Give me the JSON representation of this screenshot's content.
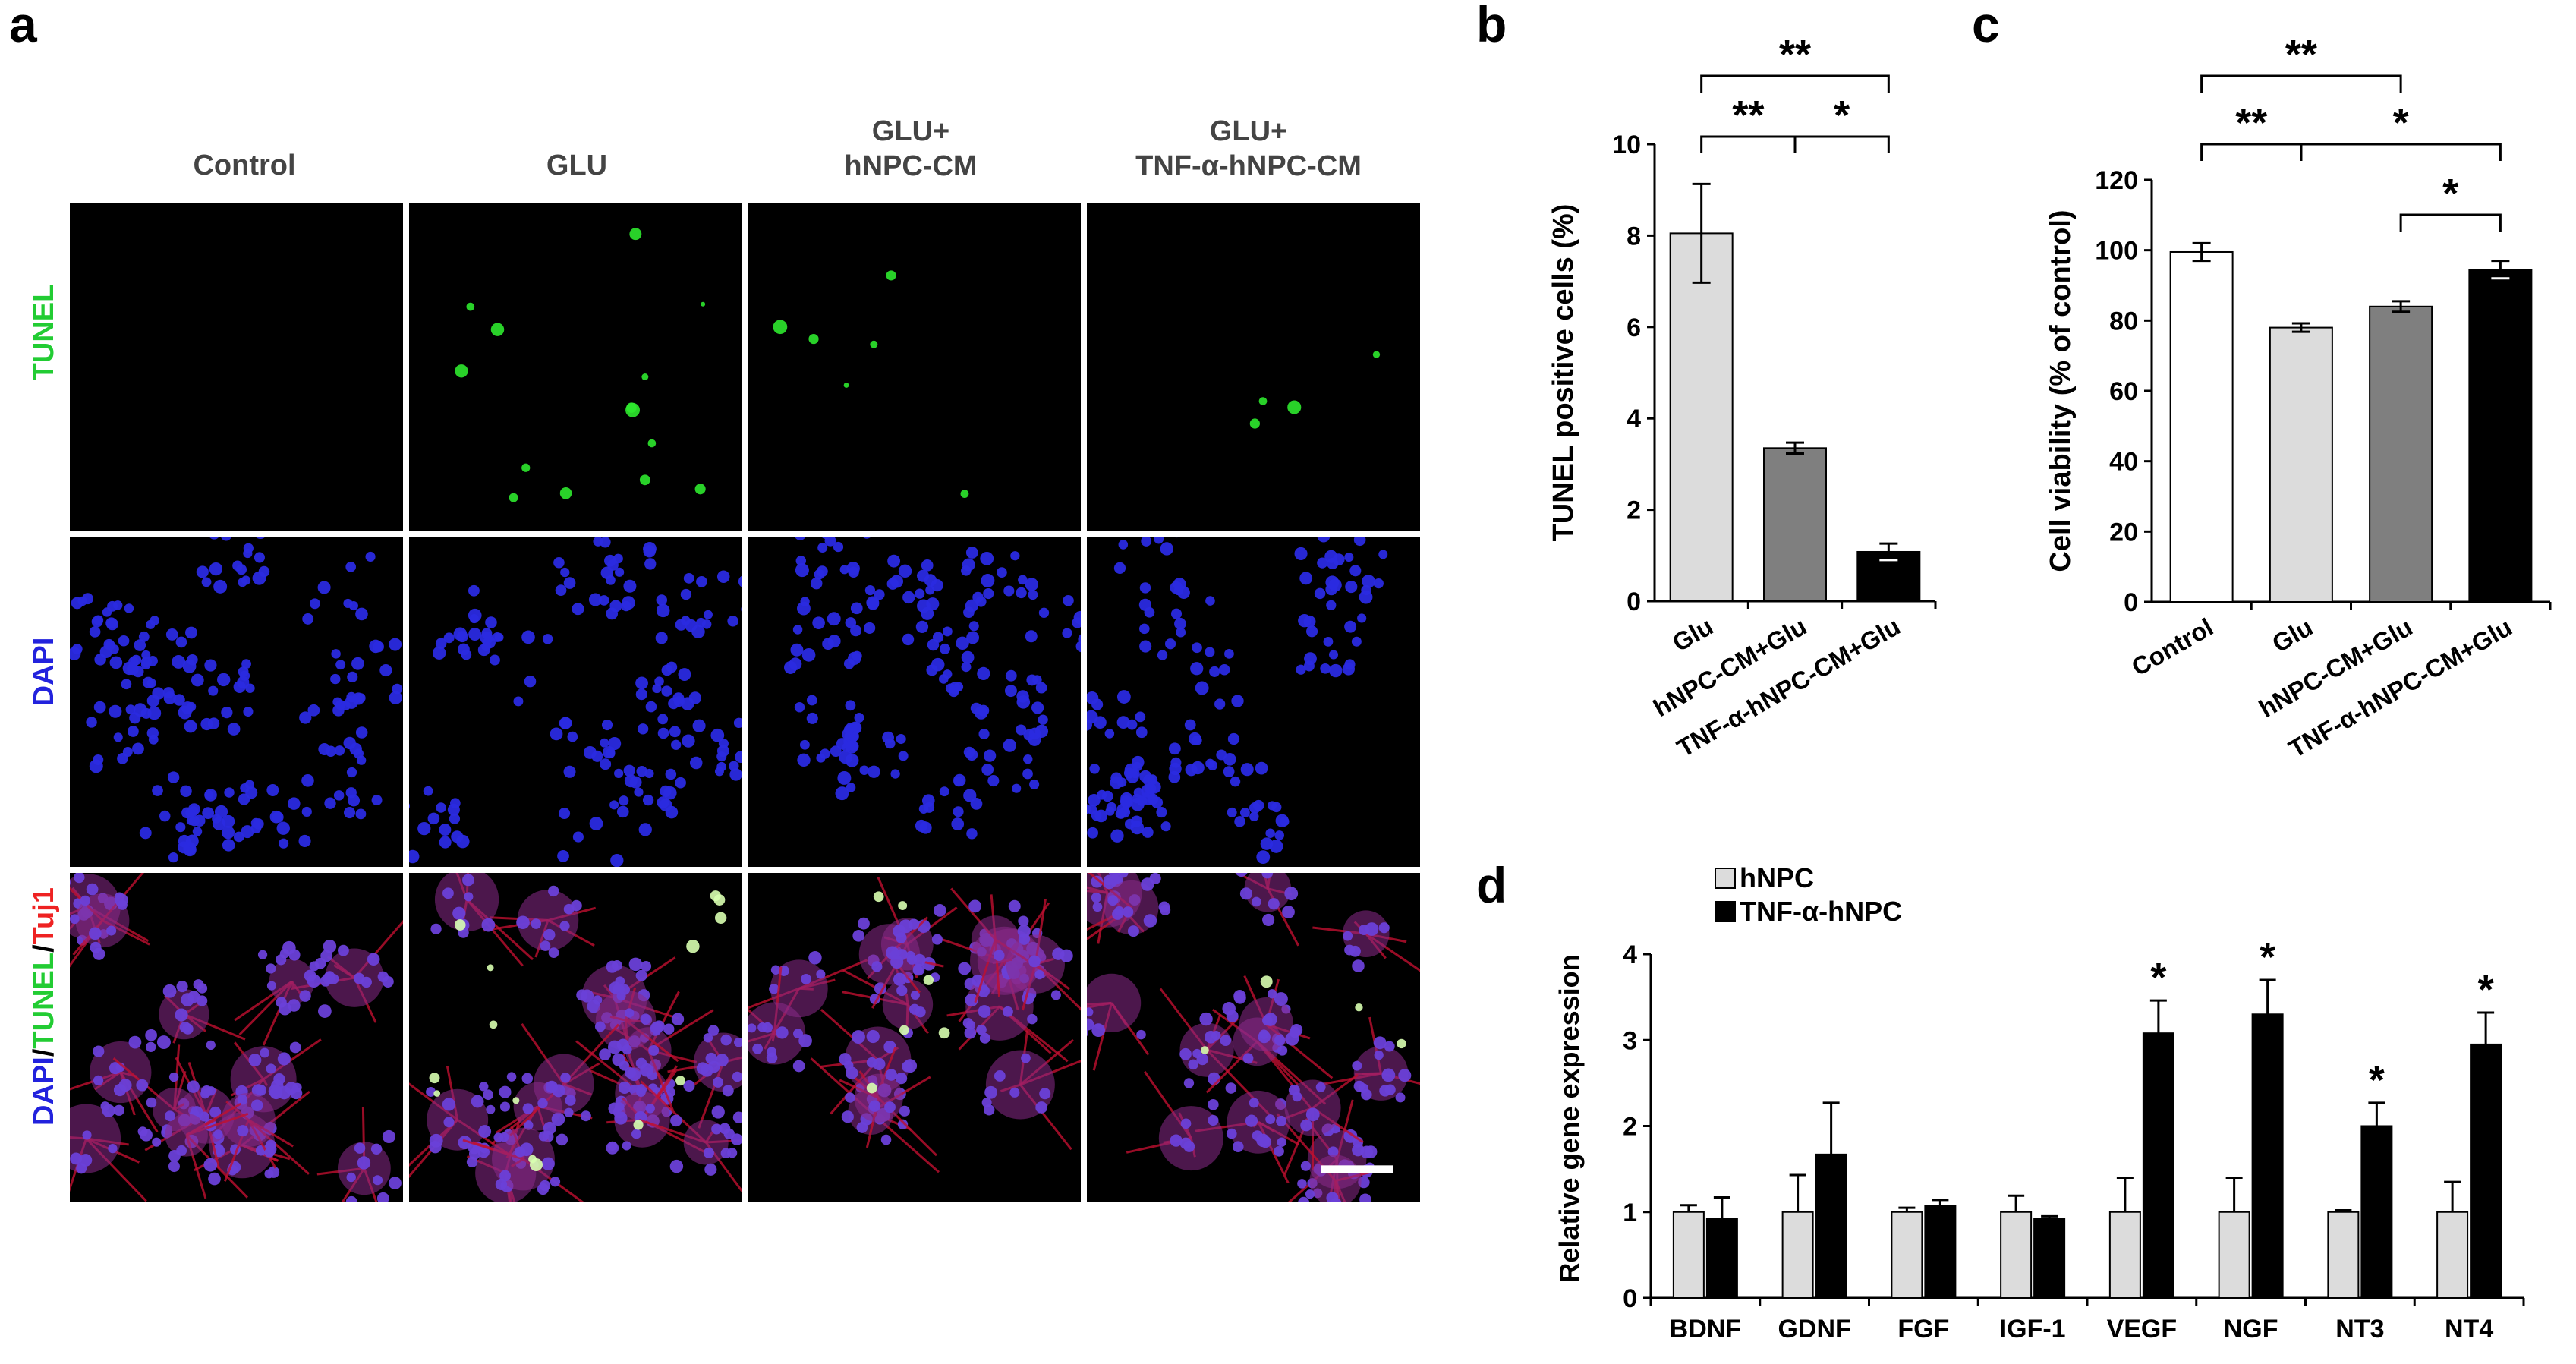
{
  "panels": {
    "a": "a",
    "b": "b",
    "c": "c",
    "d": "d"
  },
  "microscopy": {
    "columns": [
      "Control",
      "GLU",
      "GLU+\nhNPC-CM",
      "GLU+\nTNF-α-hNPC-CM"
    ],
    "rows": [
      {
        "parts": [
          {
            "text": "TUNEL",
            "color": "#22cc33"
          }
        ]
      },
      {
        "parts": [
          {
            "text": "DAPI",
            "color": "#2222dd"
          }
        ]
      },
      {
        "parts": [
          {
            "text": "DAPI",
            "color": "#2222dd"
          },
          {
            "text": "/",
            "color": "#000000"
          },
          {
            "text": "TUNEL",
            "color": "#22cc33"
          },
          {
            "text": "/",
            "color": "#000000"
          },
          {
            "text": "Tuj1",
            "color": "#ee2222"
          }
        ]
      }
    ],
    "colors": {
      "tunel": "#2ee82e",
      "dapi": "#2a2ae0",
      "tuj1": "#c01030",
      "background": "#000000"
    }
  },
  "chart_data": [
    {
      "panel": "b",
      "type": "bar",
      "categories": [
        "Glu",
        "hNPC-CM+Glu",
        "TNF-α-hNPC-CM+Glu"
      ],
      "values": [
        8.05,
        3.35,
        1.08
      ],
      "errors": [
        1.08,
        0.12,
        0.18
      ],
      "colors": [
        "#dcdcdc",
        "#7f7f7f",
        "#000000"
      ],
      "ylabel": "TUNEL positive cells (%)",
      "ylim": [
        0,
        10
      ],
      "yticks": [
        0,
        2,
        4,
        6,
        8,
        10
      ],
      "significance": [
        {
          "from": 0,
          "to": 2,
          "label": "**"
        },
        {
          "from": 0,
          "to": 1,
          "label": "**"
        },
        {
          "from": 1,
          "to": 2,
          "label": "*"
        }
      ]
    },
    {
      "panel": "c",
      "type": "bar",
      "categories": [
        "Control",
        "Glu",
        "hNPC-CM+Glu",
        "TNF-α-hNPC-CM+Glu"
      ],
      "values": [
        99.5,
        78,
        84,
        94.5
      ],
      "errors": [
        2.5,
        1.2,
        1.5,
        2.5
      ],
      "colors": [
        "#ffffff",
        "#dcdcdc",
        "#7f7f7f",
        "#000000"
      ],
      "ylabel": "Cell viability (% of control)",
      "ylim": [
        0,
        120
      ],
      "yticks": [
        0,
        20,
        40,
        60,
        80,
        100,
        120
      ],
      "significance": [
        {
          "from": 0,
          "to": 2,
          "label": "**"
        },
        {
          "from": 0,
          "to": 1,
          "label": "**"
        },
        {
          "from": 1,
          "to": 3,
          "label": "*"
        },
        {
          "from": 2,
          "to": 3,
          "label": "*"
        }
      ]
    },
    {
      "panel": "d",
      "type": "bar",
      "categories": [
        "BDNF",
        "GDNF",
        "FGF",
        "IGF-1",
        "VEGF",
        "NGF",
        "NT3",
        "NT4"
      ],
      "series": [
        {
          "name": "hNPC",
          "color": "#dcdcdc",
          "values": [
            1,
            1,
            1,
            1,
            1,
            1,
            1,
            1
          ],
          "errors": [
            0.08,
            0.43,
            0.05,
            0.19,
            0.4,
            0.4,
            0.02,
            0.35
          ]
        },
        {
          "name": "TNF-α-hNPC",
          "color": "#000000",
          "values": [
            0.92,
            1.67,
            1.07,
            0.92,
            3.08,
            3.3,
            2.0,
            2.95
          ],
          "errors": [
            0.25,
            0.6,
            0.07,
            0.03,
            0.38,
            0.4,
            0.27,
            0.37
          ]
        }
      ],
      "stars": [
        "",
        "",
        "",
        "",
        "*",
        "*",
        "*",
        "*"
      ],
      "ylabel": "Relative gene expression",
      "ylim": [
        0,
        4
      ],
      "yticks": [
        0,
        1,
        2,
        3,
        4
      ],
      "legend_position": "top-left"
    }
  ]
}
